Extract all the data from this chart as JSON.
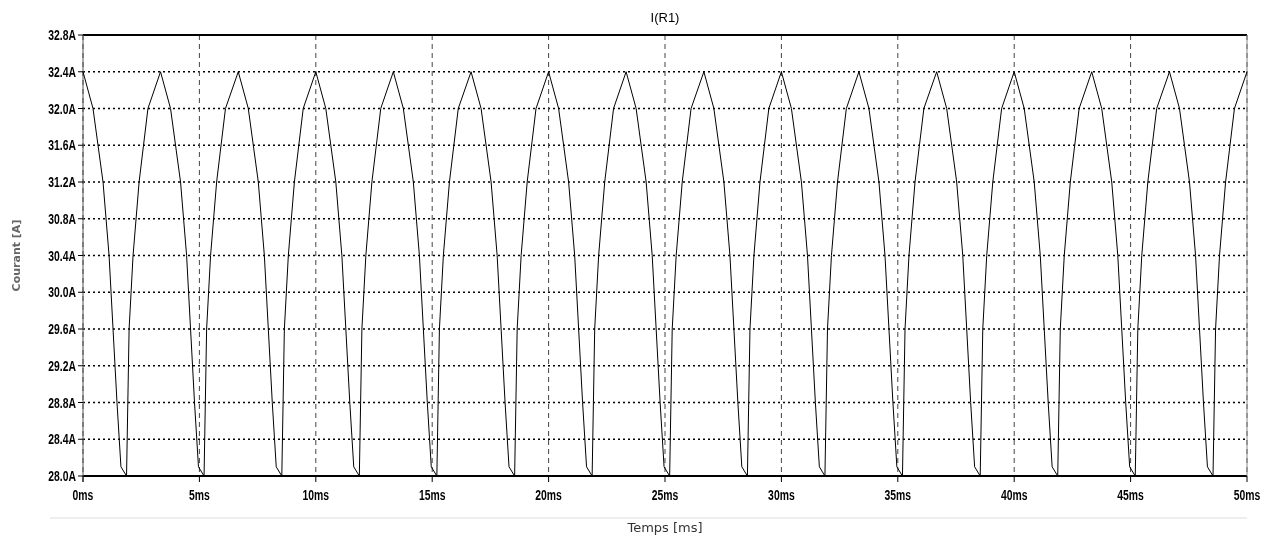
{
  "chart_data": {
    "type": "line",
    "title": "I(R1)",
    "xlabel": "Temps [ms]",
    "ylabel": "Courant [A]",
    "grid": true,
    "line_style": "solid",
    "color": "#000000",
    "x": [
      0,
      0.43,
      0.86,
      1.12,
      1.46,
      1.63,
      1.87,
      1.98,
      2.15,
      2.41,
      2.79,
      3.33,
      3.76,
      4.19,
      4.45,
      4.79,
      4.96,
      5.2,
      5.31,
      5.48,
      5.74,
      6.12,
      6.67,
      7.1,
      7.53,
      7.79,
      8.13,
      8.3,
      8.54,
      8.65,
      8.82,
      9.08,
      9.46,
      10,
      10.43,
      10.86,
      11.12,
      11.46,
      11.63,
      11.87,
      11.98,
      12.15,
      12.41,
      12.79,
      13.33,
      13.76,
      14.19,
      14.45,
      14.79,
      14.96,
      15.2,
      15.31,
      15.48,
      15.74,
      16.12,
      16.67,
      17.1,
      17.53,
      17.79,
      18.13,
      18.3,
      18.54,
      18.65,
      18.82,
      19.08,
      19.46,
      20,
      20.43,
      20.86,
      21.12,
      21.46,
      21.63,
      21.87,
      21.98,
      22.15,
      22.41,
      22.79,
      23.33,
      23.76,
      24.19,
      24.45,
      24.79,
      24.96,
      25.2,
      25.31,
      25.48,
      25.74,
      26.12,
      26.67,
      27.1,
      27.53,
      27.79,
      28.13,
      28.3,
      28.54,
      28.65,
      28.82,
      29.08,
      29.46,
      30,
      30.43,
      30.86,
      31.12,
      31.46,
      31.63,
      31.87,
      31.98,
      32.15,
      32.41,
      32.79,
      33.33,
      33.76,
      34.19,
      34.45,
      34.79,
      34.96,
      35.2,
      35.31,
      35.48,
      35.74,
      36.12,
      36.67,
      37.1,
      37.53,
      37.79,
      38.13,
      38.3,
      38.54,
      38.65,
      38.82,
      39.08,
      39.46,
      40,
      40.43,
      40.86,
      41.12,
      41.46,
      41.63,
      41.87,
      41.98,
      42.15,
      42.41,
      42.79,
      43.33,
      43.76,
      44.19,
      44.45,
      44.79,
      44.96,
      45.2,
      45.31,
      45.48,
      45.74,
      46.12,
      46.67,
      47.1,
      47.53,
      47.79,
      48.13,
      48.3,
      48.54,
      48.65,
      48.82,
      49.08,
      49.46,
      50
    ],
    "values": [
      32.4,
      32.0,
      31.2,
      30.4,
      28.8,
      28.1,
      28.0,
      29.6,
      30.4,
      31.2,
      32.0,
      32.4,
      32.0,
      31.2,
      30.4,
      28.8,
      28.1,
      28.0,
      29.6,
      30.4,
      31.2,
      32.0,
      32.4,
      32.0,
      31.2,
      30.4,
      28.8,
      28.1,
      28.0,
      29.6,
      30.4,
      31.2,
      32.0,
      32.4,
      32.0,
      31.2,
      30.4,
      28.8,
      28.1,
      28.0,
      29.6,
      30.4,
      31.2,
      32.0,
      32.4,
      32.0,
      31.2,
      30.4,
      28.8,
      28.1,
      28.0,
      29.6,
      30.4,
      31.2,
      32.0,
      32.4,
      32.0,
      31.2,
      30.4,
      28.8,
      28.1,
      28.0,
      29.6,
      30.4,
      31.2,
      32.0,
      32.4,
      32.0,
      31.2,
      30.4,
      28.8,
      28.1,
      28.0,
      29.6,
      30.4,
      31.2,
      32.0,
      32.4,
      32.0,
      31.2,
      30.4,
      28.8,
      28.1,
      28.0,
      29.6,
      30.4,
      31.2,
      32.0,
      32.4,
      32.0,
      31.2,
      30.4,
      28.8,
      28.1,
      28.0,
      29.6,
      30.4,
      31.2,
      32.0,
      32.4,
      32.0,
      31.2,
      30.4,
      28.8,
      28.1,
      28.0,
      29.6,
      30.4,
      31.2,
      32.0,
      32.4,
      32.0,
      31.2,
      30.4,
      28.8,
      28.1,
      28.0,
      29.6,
      30.4,
      31.2,
      32.0,
      32.4,
      32.0,
      31.2,
      30.4,
      28.8,
      28.1,
      28.0,
      29.6,
      30.4,
      31.2,
      32.0,
      32.4,
      32.0,
      31.2,
      30.4,
      28.8,
      28.1,
      28.0,
      29.6,
      30.4,
      31.2,
      32.0,
      32.4,
      32.0,
      31.2,
      30.4,
      28.8,
      28.1,
      28.0,
      29.6,
      30.4,
      31.2,
      32.0,
      32.4,
      32.0,
      31.2,
      30.4,
      28.8,
      28.1,
      28.0,
      29.6,
      30.4,
      31.2,
      32.0,
      32.4
    ],
    "xlim": [
      0,
      50
    ],
    "ylim": [
      28.0,
      32.8
    ],
    "xticks": [
      {
        "value": 0,
        "label": "0ms"
      },
      {
        "value": 5,
        "label": "5ms"
      },
      {
        "value": 10,
        "label": "10ms"
      },
      {
        "value": 15,
        "label": "15ms"
      },
      {
        "value": 20,
        "label": "20ms"
      },
      {
        "value": 25,
        "label": "25ms"
      },
      {
        "value": 30,
        "label": "30ms"
      },
      {
        "value": 35,
        "label": "35ms"
      },
      {
        "value": 40,
        "label": "40ms"
      },
      {
        "value": 45,
        "label": "45ms"
      },
      {
        "value": 50,
        "label": "50ms"
      }
    ],
    "yticks": [
      {
        "value": 28.0,
        "label": "28.0A"
      },
      {
        "value": 28.4,
        "label": "28.4A"
      },
      {
        "value": 28.8,
        "label": "28.8A"
      },
      {
        "value": 29.2,
        "label": "29.2A"
      },
      {
        "value": 29.6,
        "label": "29.6A"
      },
      {
        "value": 30.0,
        "label": "30.0A"
      },
      {
        "value": 30.4,
        "label": "30.4A"
      },
      {
        "value": 30.8,
        "label": "30.8A"
      },
      {
        "value": 31.2,
        "label": "31.2A"
      },
      {
        "value": 31.6,
        "label": "31.6A"
      },
      {
        "value": 32.0,
        "label": "32.0A"
      },
      {
        "value": 32.4,
        "label": "32.4A"
      },
      {
        "value": 32.8,
        "label": "32.8A"
      }
    ]
  }
}
